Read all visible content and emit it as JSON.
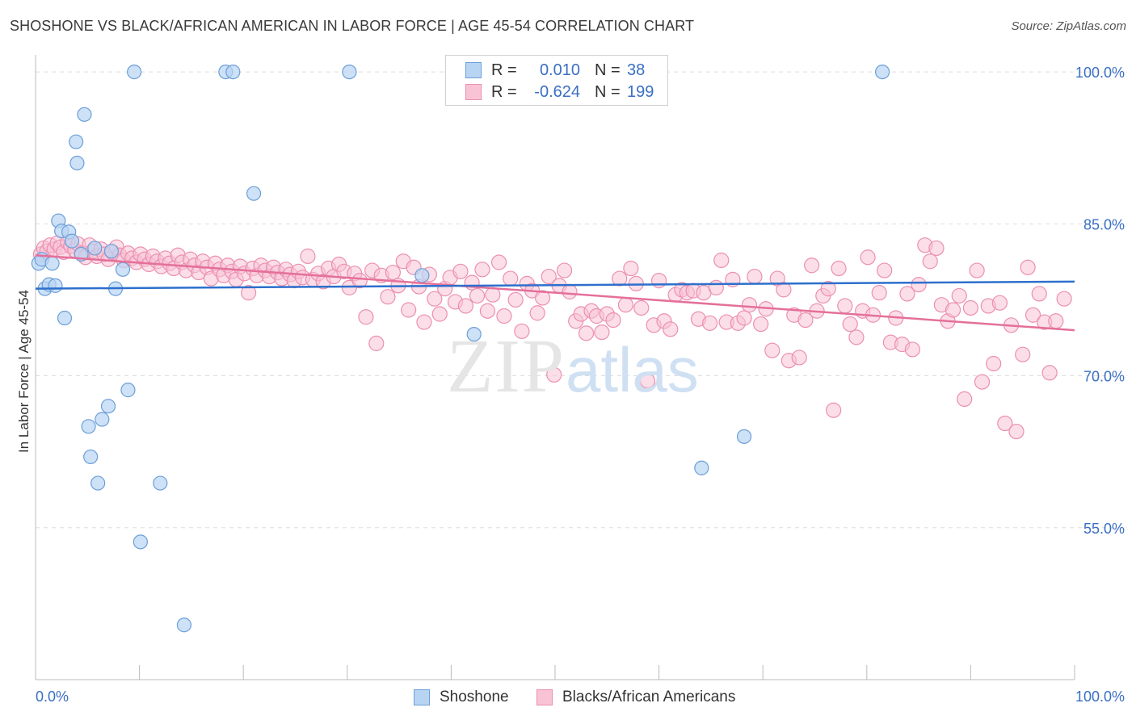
{
  "title": "SHOSHONE VS BLACK/AFRICAN AMERICAN IN LABOR FORCE | AGE 45-54 CORRELATION CHART",
  "source": "Source: ZipAtlas.com",
  "watermark": {
    "zip": "ZIP",
    "atlas": "atlas"
  },
  "legend": {
    "rows": [
      {
        "r_label": "R =",
        "r_value": "0.010",
        "n_label": "N =",
        "n_value": "38"
      },
      {
        "r_label": "R =",
        "r_value": "-0.624",
        "n_label": "N =",
        "n_value": "199"
      }
    ]
  },
  "colors": {
    "shoshone_fill": "#b8d4f3",
    "shoshone_stroke": "#6d9fd8",
    "shoshone_line": "#2d6fcc",
    "black_fill": "#f8c3d5",
    "black_stroke": "#ec8fb0",
    "black_line": "#e4709a",
    "tick_label": "#3a6fc4",
    "grid": "#dddddd"
  },
  "chart_data": {
    "type": "scatter",
    "title": "SHOSHONE VS BLACK/AFRICAN AMERICAN IN LABOR FORCE | AGE 45-54 CORRELATION CHART",
    "xlabel": "",
    "ylabel": "In Labor Force | Age 45-54",
    "xlim": [
      0,
      100
    ],
    "ylim": [
      40,
      102
    ],
    "x_tick_labels": [
      "0.0%",
      "100.0%"
    ],
    "y_ticks": [
      55,
      70,
      85,
      100
    ],
    "y_tick_labels": [
      "55.0%",
      "70.0%",
      "85.0%",
      "100.0%"
    ],
    "grid": true,
    "legend_position": "top-center",
    "series": [
      {
        "name": "Shoshone",
        "r": 0.01,
        "n": 38,
        "trend": [
          [
            0,
            78.6
          ],
          [
            100,
            79.3
          ]
        ],
        "points": [
          [
            0.3,
            81.1
          ],
          [
            0.6,
            81.5
          ],
          [
            0.9,
            78.6
          ],
          [
            1.3,
            79.0
          ],
          [
            1.6,
            81.1
          ],
          [
            1.9,
            78.9
          ],
          [
            2.2,
            85.3
          ],
          [
            2.5,
            84.3
          ],
          [
            2.8,
            75.7
          ],
          [
            3.2,
            84.2
          ],
          [
            3.5,
            83.3
          ],
          [
            3.9,
            93.1
          ],
          [
            4.0,
            91.0
          ],
          [
            4.4,
            82.0
          ],
          [
            4.7,
            95.8
          ],
          [
            5.1,
            65.0
          ],
          [
            5.3,
            62.0
          ],
          [
            5.7,
            82.6
          ],
          [
            6.0,
            59.4
          ],
          [
            6.4,
            65.7
          ],
          [
            7.0,
            67.0
          ],
          [
            7.3,
            82.3
          ],
          [
            7.7,
            78.6
          ],
          [
            8.4,
            80.5
          ],
          [
            8.9,
            68.6
          ],
          [
            9.5,
            100.0
          ],
          [
            10.1,
            53.6
          ],
          [
            12.0,
            59.4
          ],
          [
            14.3,
            45.4
          ],
          [
            18.3,
            100.0
          ],
          [
            19.0,
            100.0
          ],
          [
            21.0,
            88.0
          ],
          [
            30.2,
            100.0
          ],
          [
            37.2,
            79.9
          ],
          [
            42.2,
            74.1
          ],
          [
            64.1,
            60.9
          ],
          [
            68.2,
            64.0
          ],
          [
            81.5,
            100.0
          ]
        ]
      },
      {
        "name": "Blacks/African Americans",
        "r": -0.624,
        "n": 199,
        "trend": [
          [
            0,
            81.9
          ],
          [
            100,
            74.5
          ]
        ],
        "points": [
          [
            0.5,
            82.0
          ],
          [
            0.8,
            82.6
          ],
          [
            1.1,
            82.3
          ],
          [
            1.4,
            82.9
          ],
          [
            1.8,
            82.5
          ],
          [
            2.1,
            83.1
          ],
          [
            2.4,
            82.7
          ],
          [
            2.7,
            82.2
          ],
          [
            3.1,
            83.2
          ],
          [
            3.4,
            82.8
          ],
          [
            3.8,
            82.4
          ],
          [
            4.1,
            83.0
          ],
          [
            4.5,
            82.1
          ],
          [
            4.8,
            81.7
          ],
          [
            5.2,
            82.9
          ],
          [
            5.5,
            82.3
          ],
          [
            5.9,
            81.8
          ],
          [
            6.3,
            82.5
          ],
          [
            6.6,
            82.0
          ],
          [
            7.0,
            81.5
          ],
          [
            7.4,
            82.2
          ],
          [
            7.8,
            82.7
          ],
          [
            8.1,
            81.9
          ],
          [
            8.5,
            81.4
          ],
          [
            8.9,
            82.1
          ],
          [
            9.3,
            81.6
          ],
          [
            9.7,
            81.2
          ],
          [
            10.1,
            82.0
          ],
          [
            10.5,
            81.5
          ],
          [
            10.9,
            81.0
          ],
          [
            11.3,
            81.8
          ],
          [
            11.7,
            81.3
          ],
          [
            12.1,
            80.8
          ],
          [
            12.5,
            81.6
          ],
          [
            12.9,
            81.1
          ],
          [
            13.3,
            80.6
          ],
          [
            13.7,
            81.9
          ],
          [
            14.1,
            81.2
          ],
          [
            14.5,
            80.4
          ],
          [
            14.9,
            81.5
          ],
          [
            15.3,
            80.9
          ],
          [
            15.7,
            80.2
          ],
          [
            16.1,
            81.3
          ],
          [
            16.5,
            80.7
          ],
          [
            16.9,
            79.6
          ],
          [
            17.3,
            81.1
          ],
          [
            17.7,
            80.5
          ],
          [
            18.1,
            79.9
          ],
          [
            18.5,
            80.9
          ],
          [
            18.9,
            80.3
          ],
          [
            19.3,
            79.5
          ],
          [
            19.7,
            80.8
          ],
          [
            20.1,
            80.1
          ],
          [
            20.5,
            78.2
          ],
          [
            20.9,
            80.6
          ],
          [
            21.3,
            79.9
          ],
          [
            21.7,
            80.9
          ],
          [
            22.1,
            80.4
          ],
          [
            22.5,
            79.8
          ],
          [
            22.9,
            80.7
          ],
          [
            23.3,
            80.2
          ],
          [
            23.7,
            79.6
          ],
          [
            24.1,
            80.5
          ],
          [
            24.5,
            80.0
          ],
          [
            24.9,
            79.4
          ],
          [
            25.3,
            80.3
          ],
          [
            25.7,
            79.7
          ],
          [
            26.2,
            81.8
          ],
          [
            26.7,
            79.5
          ],
          [
            27.2,
            80.1
          ],
          [
            27.7,
            79.3
          ],
          [
            28.2,
            80.6
          ],
          [
            28.7,
            79.8
          ],
          [
            29.2,
            81.0
          ],
          [
            29.7,
            80.3
          ],
          [
            30.2,
            78.7
          ],
          [
            30.7,
            80.1
          ],
          [
            31.2,
            79.4
          ],
          [
            31.8,
            75.8
          ],
          [
            32.4,
            80.4
          ],
          [
            32.8,
            73.2
          ],
          [
            33.3,
            79.9
          ],
          [
            33.9,
            77.8
          ],
          [
            34.4,
            80.2
          ],
          [
            34.9,
            78.9
          ],
          [
            35.4,
            81.3
          ],
          [
            35.9,
            76.5
          ],
          [
            36.4,
            80.7
          ],
          [
            36.9,
            78.8
          ],
          [
            37.4,
            75.3
          ],
          [
            37.9,
            80.0
          ],
          [
            38.4,
            77.6
          ],
          [
            38.9,
            76.1
          ],
          [
            39.4,
            78.6
          ],
          [
            39.9,
            79.7
          ],
          [
            40.4,
            77.3
          ],
          [
            40.9,
            80.3
          ],
          [
            41.4,
            76.9
          ],
          [
            42.0,
            79.2
          ],
          [
            42.5,
            77.9
          ],
          [
            43.0,
            80.5
          ],
          [
            43.5,
            76.4
          ],
          [
            44.0,
            78.0
          ],
          [
            44.6,
            81.2
          ],
          [
            45.1,
            75.9
          ],
          [
            45.7,
            79.6
          ],
          [
            46.2,
            77.5
          ],
          [
            46.8,
            74.4
          ],
          [
            47.3,
            79.1
          ],
          [
            47.8,
            78.4
          ],
          [
            48.3,
            76.2
          ],
          [
            48.8,
            77.7
          ],
          [
            49.4,
            79.8
          ],
          [
            49.9,
            70.1
          ],
          [
            50.4,
            78.9
          ],
          [
            50.9,
            80.4
          ],
          [
            51.4,
            78.3
          ],
          [
            52.0,
            75.4
          ],
          [
            52.5,
            76.1
          ],
          [
            53.0,
            74.2
          ],
          [
            53.5,
            76.4
          ],
          [
            54.0,
            75.9
          ],
          [
            54.5,
            74.3
          ],
          [
            55.0,
            76.1
          ],
          [
            55.6,
            75.5
          ],
          [
            56.2,
            79.6
          ],
          [
            56.8,
            77.0
          ],
          [
            57.3,
            80.6
          ],
          [
            57.8,
            79.1
          ],
          [
            58.3,
            76.7
          ],
          [
            58.9,
            69.5
          ],
          [
            59.5,
            75.0
          ],
          [
            60.0,
            79.4
          ],
          [
            60.5,
            75.4
          ],
          [
            61.1,
            74.6
          ],
          [
            61.6,
            78.0
          ],
          [
            62.2,
            78.5
          ],
          [
            62.7,
            78.2
          ],
          [
            63.3,
            78.4
          ],
          [
            63.8,
            75.6
          ],
          [
            64.3,
            78.2
          ],
          [
            64.9,
            75.2
          ],
          [
            65.5,
            78.7
          ],
          [
            66.0,
            81.4
          ],
          [
            66.5,
            75.3
          ],
          [
            67.1,
            79.5
          ],
          [
            67.6,
            75.2
          ],
          [
            68.2,
            75.7
          ],
          [
            68.7,
            77.0
          ],
          [
            69.2,
            79.8
          ],
          [
            69.8,
            75.1
          ],
          [
            70.3,
            76.6
          ],
          [
            70.9,
            72.5
          ],
          [
            71.4,
            79.6
          ],
          [
            72.0,
            78.5
          ],
          [
            72.5,
            71.5
          ],
          [
            73.0,
            76.0
          ],
          [
            73.5,
            71.8
          ],
          [
            74.1,
            75.5
          ],
          [
            74.7,
            80.9
          ],
          [
            75.2,
            76.4
          ],
          [
            75.8,
            77.9
          ],
          [
            76.3,
            78.6
          ],
          [
            76.8,
            66.6
          ],
          [
            77.3,
            80.6
          ],
          [
            77.9,
            76.9
          ],
          [
            78.4,
            75.1
          ],
          [
            79.0,
            73.8
          ],
          [
            79.6,
            76.4
          ],
          [
            80.1,
            81.7
          ],
          [
            80.6,
            76.0
          ],
          [
            81.2,
            78.2
          ],
          [
            81.7,
            80.4
          ],
          [
            82.3,
            73.3
          ],
          [
            82.8,
            75.7
          ],
          [
            83.4,
            73.1
          ],
          [
            83.9,
            78.1
          ],
          [
            84.4,
            72.6
          ],
          [
            85.0,
            79.0
          ],
          [
            85.6,
            82.9
          ],
          [
            86.1,
            81.3
          ],
          [
            86.7,
            82.6
          ],
          [
            87.2,
            77.0
          ],
          [
            87.8,
            75.4
          ],
          [
            88.3,
            76.5
          ],
          [
            88.9,
            77.9
          ],
          [
            89.4,
            67.7
          ],
          [
            90.0,
            76.7
          ],
          [
            90.6,
            80.4
          ],
          [
            91.1,
            69.4
          ],
          [
            91.7,
            76.9
          ],
          [
            92.2,
            71.2
          ],
          [
            92.8,
            77.2
          ],
          [
            93.3,
            65.3
          ],
          [
            93.9,
            75.0
          ],
          [
            94.4,
            64.5
          ],
          [
            95.0,
            72.1
          ],
          [
            95.5,
            80.7
          ],
          [
            96.0,
            76.0
          ],
          [
            96.6,
            78.1
          ],
          [
            97.1,
            75.3
          ],
          [
            97.6,
            70.3
          ],
          [
            98.2,
            75.4
          ],
          [
            99.0,
            77.6
          ]
        ]
      }
    ]
  }
}
